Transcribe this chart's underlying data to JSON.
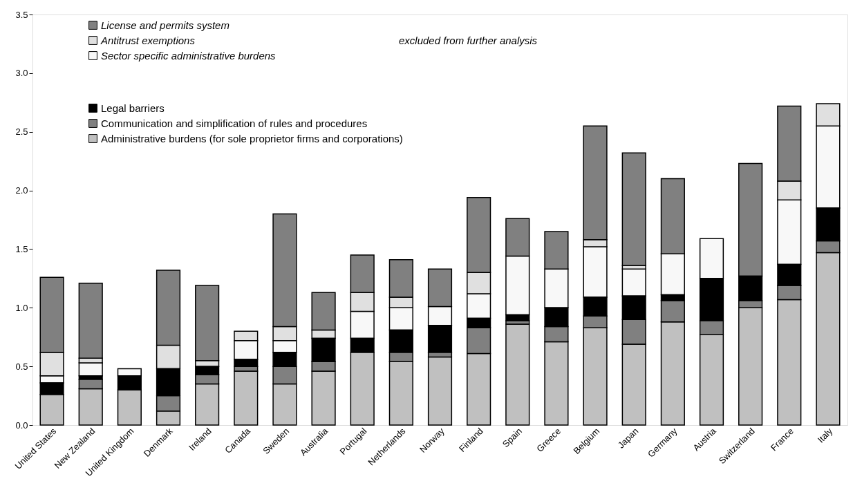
{
  "chart_data": {
    "type": "bar",
    "stacked": true,
    "categories": [
      "United States",
      "New Zealand",
      "United Kingdom",
      "Denmark",
      "Ireland",
      "Canada",
      "Sweden",
      "Australia",
      "Portugal",
      "Netherlands",
      "Norway",
      "Finland",
      "Spain",
      "Greece",
      "Belgium",
      "Japan",
      "Germany",
      "Austria",
      "Switzerland",
      "France",
      "Italy"
    ],
    "series": [
      {
        "name": "Administrative burdens (for sole proprietor firms and corporations)",
        "color": "#c0c0c0",
        "values": [
          0.26,
          0.31,
          0.3,
          0.12,
          0.35,
          0.46,
          0.35,
          0.46,
          0.62,
          0.54,
          0.58,
          0.61,
          0.86,
          0.71,
          0.83,
          0.69,
          0.88,
          0.77,
          1.0,
          1.07,
          1.47
        ]
      },
      {
        "name": "Communication and simplification of rules and procedures",
        "color": "#808080",
        "values": [
          0,
          0.08,
          0,
          0.13,
          0.08,
          0.04,
          0.15,
          0.08,
          0,
          0.08,
          0.04,
          0.22,
          0.03,
          0.13,
          0.1,
          0.21,
          0.18,
          0.12,
          0.06,
          0.12,
          0.1
        ]
      },
      {
        "name": "Legal barriers",
        "color": "#000000",
        "values": [
          0.1,
          0.03,
          0.12,
          0.23,
          0.07,
          0.06,
          0.12,
          0.2,
          0.12,
          0.19,
          0.23,
          0.08,
          0.05,
          0.16,
          0.16,
          0.2,
          0.05,
          0.36,
          0.21,
          0.18,
          0.28
        ]
      },
      {
        "name": "Sector specific administrative burdens",
        "color": "#f8f8f8",
        "values": [
          0.06,
          0.11,
          0.06,
          0,
          0,
          0.16,
          0.1,
          0,
          0.23,
          0.19,
          0.16,
          0.21,
          0.5,
          0.33,
          0.43,
          0.23,
          0.35,
          0.34,
          0,
          0.55,
          0.7
        ]
      },
      {
        "name": "Antitrust exemptions",
        "color": "#e0e0e0",
        "values": [
          0.2,
          0.04,
          0,
          0.2,
          0.05,
          0.08,
          0.12,
          0.07,
          0.16,
          0.09,
          0,
          0.18,
          0,
          0,
          0.06,
          0.03,
          0,
          0,
          0,
          0.16,
          0.19
        ]
      },
      {
        "name": "License and permits system",
        "color": "#808080",
        "values": [
          0.64,
          0.64,
          0,
          0.64,
          0.64,
          0,
          0.96,
          0.32,
          0.32,
          0.32,
          0.32,
          0.64,
          0.32,
          0.32,
          0.97,
          0.96,
          0.64,
          0,
          0.96,
          0.64,
          0
        ]
      }
    ],
    "ylim": [
      0,
      3.5
    ],
    "yticks": [
      {
        "value": 0,
        "label": "0.0"
      },
      {
        "value": 0.5,
        "label": "0.5"
      },
      {
        "value": 1,
        "label": "1.0"
      },
      {
        "value": 1.5,
        "label": "1.5"
      },
      {
        "value": 2,
        "label": "2.0"
      },
      {
        "value": 2.5,
        "label": "2.5"
      },
      {
        "value": 3,
        "label": "3.0"
      },
      {
        "value": 3.5,
        "label": "3.5"
      }
    ],
    "grid": false,
    "legend": "top left",
    "annotations": [
      "excluded from further analysis"
    ]
  }
}
